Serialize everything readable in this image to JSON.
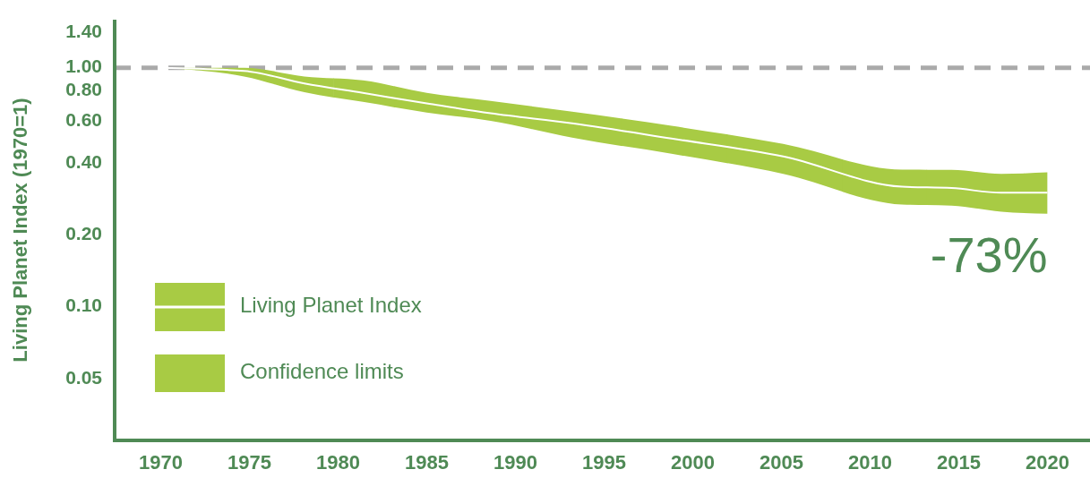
{
  "chart_data": {
    "type": "line",
    "ylabel": "Living Planet Index (1970=1)",
    "log": "y",
    "xlim": [
      1967.4,
      2022.4
    ],
    "xticks": [
      1970,
      1975,
      1980,
      1985,
      1990,
      1995,
      2000,
      2005,
      2010,
      2015,
      2020
    ],
    "ylim": [
      0.0276,
      1.59
    ],
    "yticks": [
      {
        "value": 1.4,
        "label": "1.40"
      },
      {
        "value": 1,
        "label": "1.00"
      },
      {
        "value": 0.8,
        "label": "0.80"
      },
      {
        "value": 0.6,
        "label": "0.60"
      },
      {
        "value": 0.4,
        "label": "0.40"
      },
      {
        "value": 0.2,
        "label": "0.20"
      },
      {
        "value": 0.1,
        "label": "0.10"
      },
      {
        "value": 0.05,
        "label": "0.05"
      }
    ],
    "x": [
      1970,
      1974.7,
      1978.1,
      1981.4,
      1985,
      1988.6,
      1993.2,
      1998.8,
      2005.1,
      2011.8,
      2014.6,
      2017.4,
      2020
    ],
    "series": [
      {
        "name": "Living Planet Index",
        "color": "#ffffff",
        "colors": [
          "#a8cb44",
          "#a8cb44",
          "#a8cb44",
          "#a8cb44",
          "#a8cb44",
          "#a8cb44",
          "#a8cb44",
          "#a8cb44",
          "#a8cb44",
          "#a8cb44",
          "#a8cb44",
          "#a8cb44",
          "#a8cb44"
        ],
        "values": [
          1,
          0.97,
          0.86,
          0.785,
          0.71,
          0.645,
          0.586,
          0.506,
          0.426,
          0.318,
          0.314,
          0.3,
          0.3
        ],
        "lower": [
          1,
          0.92,
          0.79,
          0.72,
          0.65,
          0.6,
          0.51,
          0.437,
          0.36,
          0.268,
          0.265,
          0.25,
          0.245
        ],
        "upper": [
          1,
          1.0,
          0.92,
          0.886,
          0.785,
          0.727,
          0.655,
          0.572,
          0.48,
          0.375,
          0.374,
          0.36,
          0.365
        ]
      }
    ],
    "ref_lines": [
      {
        "axis": "y",
        "value": 1,
        "color": "#aaaaaa",
        "line_style": "dashed"
      }
    ],
    "annotations": [
      {
        "text": "-73%",
        "x": 2020,
        "y": 0.245
      },
      "Confidence limits"
    ],
    "legend": "bottom left"
  }
}
